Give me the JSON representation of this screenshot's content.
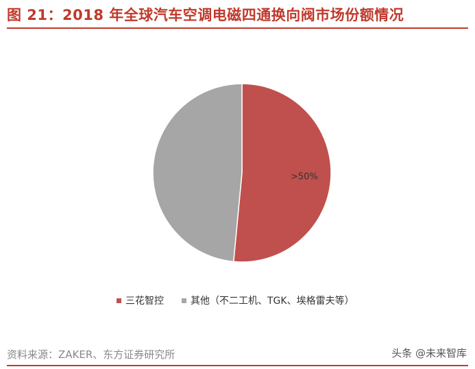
{
  "header": {
    "title": "图 21：2018 年全球汽车空调电磁四通换向阀市场份额情况"
  },
  "chart_data": {
    "type": "pie",
    "slices": [
      {
        "name": "三花智控",
        "value": 51.5,
        "label": ">50%",
        "color": "#c0504d"
      },
      {
        "name": "其他（不二工机、TGK、埃格雷夫等）",
        "value": 48.5,
        "label": "",
        "color": "#a6a6a6"
      }
    ],
    "title": "",
    "legend_position": "bottom"
  },
  "footer": {
    "source": "资料来源：ZAKER、东方证券研究所",
    "watermark": "头条 @未来智库"
  },
  "colors": {
    "accent": "#c0392b"
  }
}
